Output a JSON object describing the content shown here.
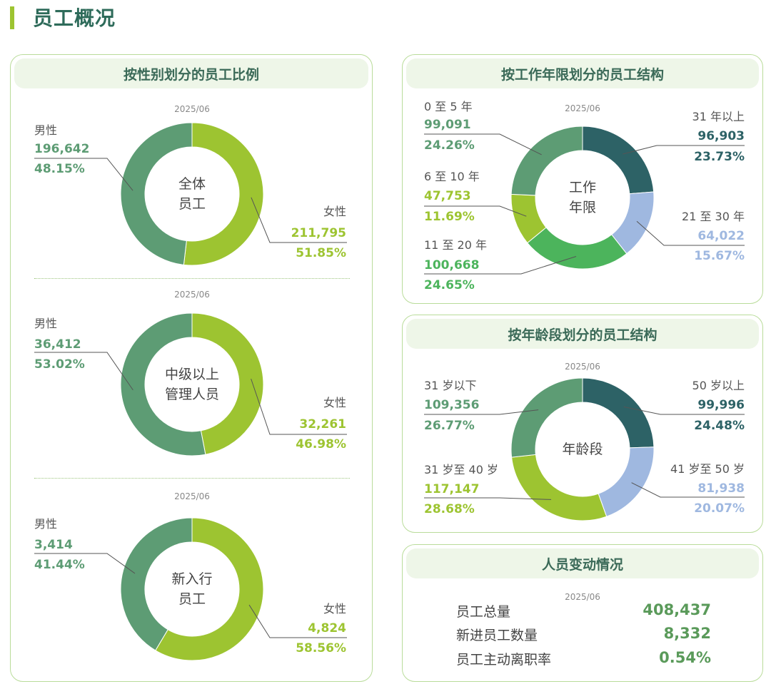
{
  "page_title": "员工概况",
  "colors": {
    "male": "#5d9c74",
    "female": "#9dc431",
    "seg_0_5": "#5d9c74",
    "seg_6_10": "#9dc431",
    "seg_11_20": "#4cb45c",
    "seg_21_30": "#9fb8e0",
    "seg_31_plus": "#2d6266"
  },
  "gender_panel": {
    "title": "按性别划分的员工比例",
    "charts": [
      {
        "date": "2025/06",
        "center": [
          "全体",
          "员工"
        ],
        "male_label": "男性",
        "male_count": "196,642",
        "male_pct": "48.15%",
        "female_label": "女性",
        "female_count": "211,795",
        "female_pct": "51.85%"
      },
      {
        "date": "2025/06",
        "center": [
          "中级以上",
          "管理人员"
        ],
        "male_label": "男性",
        "male_count": "36,412",
        "male_pct": "53.02%",
        "female_label": "女性",
        "female_count": "32,261",
        "female_pct": "46.98%"
      },
      {
        "date": "2025/06",
        "center": [
          "新入行",
          "员工"
        ],
        "male_label": "男性",
        "male_count": "3,414",
        "male_pct": "41.44%",
        "female_label": "女性",
        "female_count": "4,824",
        "female_pct": "58.56%"
      }
    ]
  },
  "tenure_panel": {
    "title": "按工作年限划分的员工结构",
    "date": "2025/06",
    "center": [
      "工作",
      "年限"
    ],
    "items": [
      {
        "label": "31 年以上",
        "count": "96,903",
        "pct": "23.73%"
      },
      {
        "label": "21 至 30 年",
        "count": "64,022",
        "pct": "15.67%"
      },
      {
        "label": "11 至 20 年",
        "count": "100,668",
        "pct": "24.65%"
      },
      {
        "label": "6 至 10 年",
        "count": "47,753",
        "pct": "11.69%"
      },
      {
        "label": "0 至 5 年",
        "count": "99,091",
        "pct": "24.26%"
      }
    ]
  },
  "age_panel": {
    "title": "按年龄段划分的员工结构",
    "date": "2025/06",
    "center": [
      "年龄段"
    ],
    "items": [
      {
        "label": "50 岁以上",
        "count": "99,996",
        "pct": "24.48%"
      },
      {
        "label": "41 岁至 50 岁",
        "count": "81,938",
        "pct": "20.07%"
      },
      {
        "label": "31 岁至 40 岁",
        "count": "117,147",
        "pct": "28.68%"
      },
      {
        "label": "31 岁以下",
        "count": "109,356",
        "pct": "26.77%"
      }
    ]
  },
  "change_panel": {
    "title": "人员变动情况",
    "date": "2025/06",
    "rows": [
      {
        "label": "员工总量",
        "value": "408,437"
      },
      {
        "label": "新进员工数量",
        "value": "8,332"
      },
      {
        "label": "员工主动离职率",
        "value": "0.54%"
      }
    ]
  },
  "chart_data": [
    {
      "type": "pie",
      "variant": "donut",
      "center_label": "全体员工",
      "date": "2025/06",
      "categories": [
        "男性",
        "女性"
      ],
      "values": [
        196642,
        211795
      ],
      "percentages": [
        48.15,
        51.85
      ],
      "colors": [
        "#5d9c74",
        "#9dc431"
      ]
    },
    {
      "type": "pie",
      "variant": "donut",
      "center_label": "中级以上管理人员",
      "date": "2025/06",
      "categories": [
        "男性",
        "女性"
      ],
      "values": [
        36412,
        32261
      ],
      "percentages": [
        53.02,
        46.98
      ],
      "colors": [
        "#5d9c74",
        "#9dc431"
      ]
    },
    {
      "type": "pie",
      "variant": "donut",
      "center_label": "新入行员工",
      "date": "2025/06",
      "categories": [
        "男性",
        "女性"
      ],
      "values": [
        3414,
        4824
      ],
      "percentages": [
        41.44,
        58.56
      ],
      "colors": [
        "#5d9c74",
        "#9dc431"
      ]
    },
    {
      "type": "pie",
      "variant": "donut",
      "center_label": "工作年限",
      "date": "2025/06",
      "categories": [
        "31 年以上",
        "21 至 30 年",
        "11 至 20 年",
        "6 至 10 年",
        "0 至 5 年"
      ],
      "values": [
        96903,
        64022,
        100668,
        47753,
        99091
      ],
      "percentages": [
        23.73,
        15.67,
        24.65,
        11.69,
        24.26
      ],
      "colors": [
        "#2d6266",
        "#9fb8e0",
        "#4cb45c",
        "#9dc431",
        "#5d9c74"
      ]
    },
    {
      "type": "pie",
      "variant": "donut",
      "center_label": "年龄段",
      "date": "2025/06",
      "categories": [
        "50 岁以上",
        "41 岁至 50 岁",
        "31 岁至 40 岁",
        "31 岁以下"
      ],
      "values": [
        99996,
        81938,
        117147,
        109356
      ],
      "percentages": [
        24.48,
        20.07,
        28.68,
        26.77
      ],
      "colors": [
        "#2d6266",
        "#9fb8e0",
        "#9dc431",
        "#5d9c74"
      ]
    }
  ]
}
